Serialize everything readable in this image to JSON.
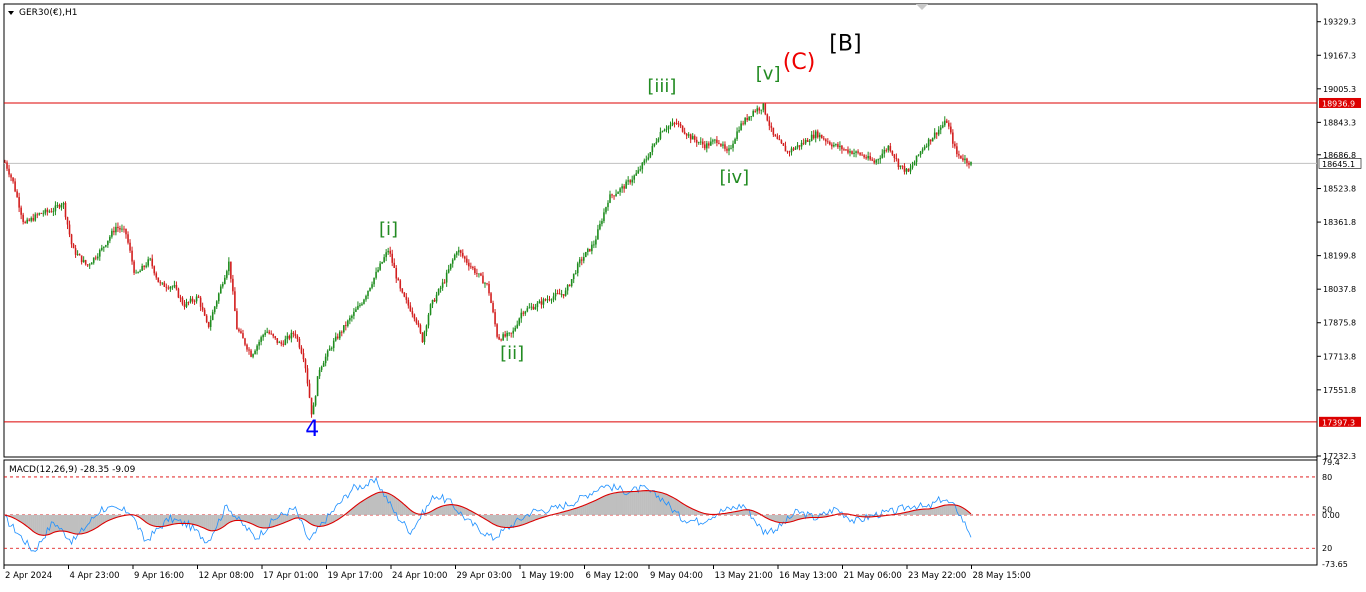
{
  "chart_data": {
    "type": "candlestick",
    "title": "GER30(€),H1",
    "price_axis": {
      "ylim": [
        17232.3,
        19410
      ],
      "ticks": [
        19329.3,
        19167.3,
        19005.3,
        18843.3,
        18686.8,
        18523.8,
        18361.8,
        18199.8,
        18037.8,
        17875.8,
        17713.8,
        17551.8,
        17232.3
      ]
    },
    "time_axis": {
      "ticks": [
        "2 Apr 2024",
        "4 Apr 23:00",
        "9 Apr 16:00",
        "12 Apr 08:00",
        "17 Apr 01:00",
        "19 Apr 17:00",
        "24 Apr 10:00",
        "29 Apr 03:00",
        "1 May 19:00",
        "6 May 12:00",
        "9 May 04:00",
        "13 May 21:00",
        "16 May 13:00",
        "21 May 06:00",
        "23 May 22:00",
        "28 May 15:00"
      ]
    },
    "levels": [
      {
        "price": 18936.9,
        "label": "18936.9",
        "color": "#dc0000"
      },
      {
        "price": 17397.3,
        "label": "17397.3",
        "color": "#dc0000"
      }
    ],
    "current_price": {
      "price": 18645.1,
      "label": "18645.1"
    },
    "price_path": [
      [
        0,
        18650
      ],
      [
        0.008,
        18560
      ],
      [
        0.02,
        18350
      ],
      [
        0.035,
        18400
      ],
      [
        0.05,
        18420
      ],
      [
        0.06,
        18460
      ],
      [
        0.07,
        18230
      ],
      [
        0.085,
        18150
      ],
      [
        0.1,
        18230
      ],
      [
        0.115,
        18340
      ],
      [
        0.125,
        18310
      ],
      [
        0.135,
        18100
      ],
      [
        0.15,
        18180
      ],
      [
        0.16,
        18060
      ],
      [
        0.175,
        18050
      ],
      [
        0.185,
        17960
      ],
      [
        0.2,
        18000
      ],
      [
        0.21,
        17850
      ],
      [
        0.225,
        18070
      ],
      [
        0.232,
        18170
      ],
      [
        0.24,
        17850
      ],
      [
        0.255,
        17720
      ],
      [
        0.27,
        17840
      ],
      [
        0.285,
        17770
      ],
      [
        0.3,
        17830
      ],
      [
        0.31,
        17700
      ],
      [
        0.318,
        17420
      ],
      [
        0.325,
        17650
      ],
      [
        0.34,
        17780
      ],
      [
        0.355,
        17880
      ],
      [
        0.37,
        17980
      ],
      [
        0.385,
        18120
      ],
      [
        0.397,
        18230
      ],
      [
        0.41,
        18020
      ],
      [
        0.425,
        17900
      ],
      [
        0.432,
        17790
      ],
      [
        0.44,
        17950
      ],
      [
        0.455,
        18080
      ],
      [
        0.468,
        18230
      ],
      [
        0.48,
        18160
      ],
      [
        0.5,
        18050
      ],
      [
        0.51,
        17800
      ],
      [
        0.525,
        17820
      ],
      [
        0.535,
        17930
      ],
      [
        0.55,
        17960
      ],
      [
        0.565,
        18000
      ],
      [
        0.58,
        18020
      ],
      [
        0.595,
        18170
      ],
      [
        0.61,
        18260
      ],
      [
        0.625,
        18480
      ],
      [
        0.64,
        18530
      ],
      [
        0.655,
        18600
      ],
      [
        0.668,
        18700
      ],
      [
        0.68,
        18810
      ],
      [
        0.695,
        18840
      ],
      [
        0.71,
        18770
      ],
      [
        0.725,
        18730
      ],
      [
        0.738,
        18760
      ],
      [
        0.748,
        18690
      ],
      [
        0.76,
        18820
      ],
      [
        0.775,
        18900
      ],
      [
        0.785,
        18920
      ],
      [
        0.795,
        18780
      ],
      [
        0.81,
        18700
      ],
      [
        0.825,
        18740
      ],
      [
        0.84,
        18790
      ],
      [
        0.855,
        18740
      ],
      [
        0.87,
        18710
      ],
      [
        0.885,
        18690
      ],
      [
        0.9,
        18650
      ],
      [
        0.915,
        18730
      ],
      [
        0.925,
        18640
      ],
      [
        0.935,
        18600
      ],
      [
        0.95,
        18720
      ],
      [
        0.965,
        18800
      ],
      [
        0.975,
        18850
      ],
      [
        0.985,
        18690
      ],
      [
        0.995,
        18660
      ],
      [
        1,
        18645
      ]
    ],
    "wave_labels": [
      {
        "text": "4",
        "price": 17330,
        "t": 0.318,
        "color": "#0000ff"
      },
      {
        "text": "[i]",
        "price": 18300,
        "t": 0.397,
        "color": "#228b22"
      },
      {
        "text": "[ii]",
        "price": 17700,
        "t": 0.525,
        "color": "#228b22"
      },
      {
        "text": "[iii]",
        "price": 18990,
        "t": 0.68,
        "color": "#228b22"
      },
      {
        "text": "[iv]",
        "price": 18550,
        "t": 0.755,
        "color": "#228b22"
      },
      {
        "text": "[v]",
        "price": 19050,
        "t": 0.79,
        "color": "#228b22"
      },
      {
        "text": "(C)",
        "price": 19100,
        "t": 0.822,
        "color": "#ee0000"
      },
      {
        "text": "[B]",
        "price": 19190,
        "t": 0.87,
        "color": "#000000"
      }
    ],
    "macd": {
      "label": "MACD(12,26,9) -28.35 -9.09",
      "ticks_top": "79.4",
      "ticks": [
        "80",
        "50",
        "20"
      ],
      "zero_label": "0.00",
      "ticks_bottom": "-73.65",
      "ylim": [
        -73.65,
        79.4
      ],
      "path": [
        [
          0,
          -5
        ],
        [
          0.03,
          -55
        ],
        [
          0.05,
          -10
        ],
        [
          0.07,
          -40
        ],
        [
          0.1,
          10
        ],
        [
          0.13,
          5
        ],
        [
          0.145,
          -40
        ],
        [
          0.17,
          -5
        ],
        [
          0.19,
          -15
        ],
        [
          0.21,
          -40
        ],
        [
          0.23,
          15
        ],
        [
          0.24,
          -5
        ],
        [
          0.26,
          -35
        ],
        [
          0.28,
          -5
        ],
        [
          0.3,
          10
        ],
        [
          0.315,
          -40
        ],
        [
          0.33,
          -10
        ],
        [
          0.36,
          40
        ],
        [
          0.385,
          50
        ],
        [
          0.405,
          0
        ],
        [
          0.42,
          -25
        ],
        [
          0.445,
          30
        ],
        [
          0.46,
          20
        ],
        [
          0.48,
          -10
        ],
        [
          0.505,
          -35
        ],
        [
          0.52,
          -20
        ],
        [
          0.545,
          5
        ],
        [
          0.57,
          10
        ],
        [
          0.59,
          20
        ],
        [
          0.62,
          45
        ],
        [
          0.645,
          35
        ],
        [
          0.66,
          40
        ],
        [
          0.68,
          25
        ],
        [
          0.7,
          -5
        ],
        [
          0.72,
          -10
        ],
        [
          0.74,
          5
        ],
        [
          0.765,
          15
        ],
        [
          0.785,
          -25
        ],
        [
          0.8,
          -20
        ],
        [
          0.82,
          5
        ],
        [
          0.84,
          -5
        ],
        [
          0.86,
          10
        ],
        [
          0.88,
          -10
        ],
        [
          0.9,
          0
        ],
        [
          0.92,
          5
        ],
        [
          0.94,
          15
        ],
        [
          0.955,
          10
        ],
        [
          0.97,
          25
        ],
        [
          0.985,
          10
        ],
        [
          1,
          -30
        ]
      ]
    }
  }
}
